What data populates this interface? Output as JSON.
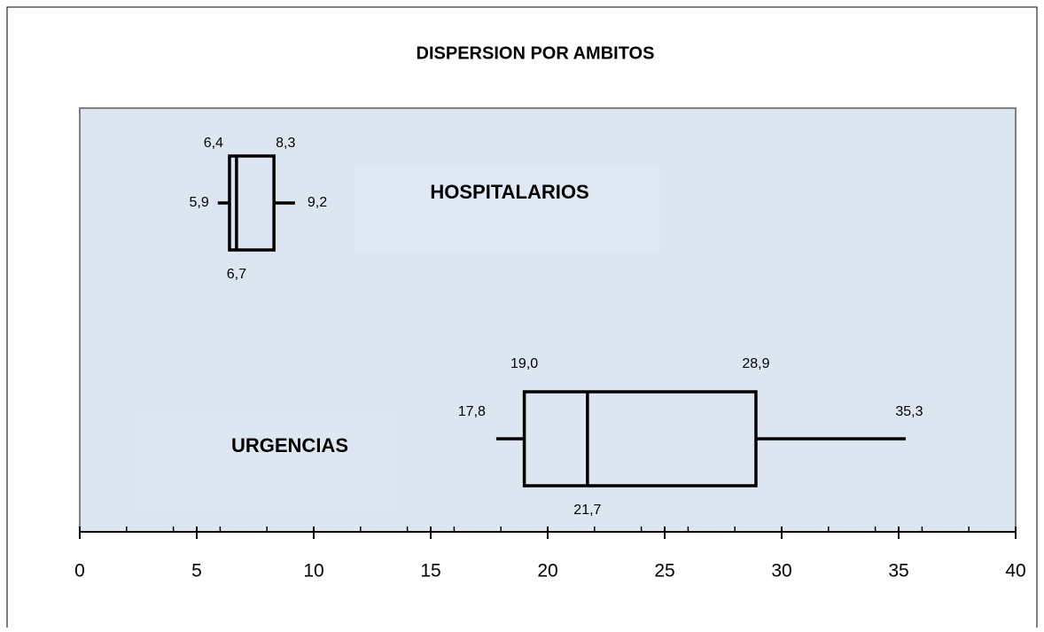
{
  "chart_data": {
    "type": "boxplot",
    "title": "DISPERSION POR AMBITOS",
    "categories": [
      "HOSPITALARIOS",
      "URGENCIAS"
    ],
    "boxes": [
      {
        "min": 5.9,
        "q1": 6.4,
        "median": 6.7,
        "q3": 8.3,
        "max": 9.2,
        "value_labels": {
          "min": "5,9",
          "q1": "6,4",
          "median": "6,7",
          "q3": "8,3",
          "max": "9,2"
        }
      },
      {
        "min": 17.8,
        "q1": 19.0,
        "median": 21.7,
        "q3": 28.9,
        "max": 35.3,
        "value_labels": {
          "min": "17,8",
          "q1": "19,0",
          "median": "21,7",
          "q3": "28,9",
          "max": "35,3"
        }
      }
    ],
    "xlim": [
      0,
      40
    ],
    "xticks": [
      0,
      5,
      10,
      15,
      20,
      25,
      30,
      35,
      40
    ],
    "xminorticks": [
      2,
      4,
      6,
      8,
      12,
      14,
      16,
      18,
      22,
      24,
      26,
      28,
      32,
      34,
      36,
      38
    ],
    "background": "#dce6f1",
    "color": "#000000"
  }
}
